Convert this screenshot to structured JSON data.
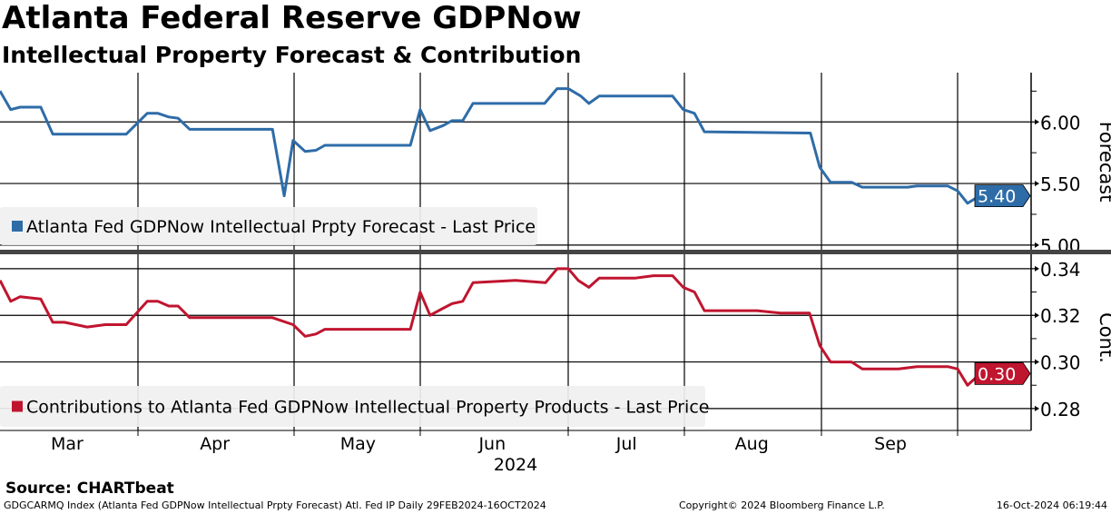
{
  "title": "Atlanta Federal Reserve GDPNow",
  "subtitle": "Intellectual Property Forecast & Contribution",
  "source": "Source: CHARTbeat",
  "footer": {
    "left": "GDGCARMQ Index (Atlanta Fed GDPNow Intellectual Prpty Forecast) Atl. Fed IP  Daily 29FEB2024-16OCT2024",
    "center": "Copyright© 2024 Bloomberg Finance L.P.",
    "right": "16-Oct-2024 06:19:44"
  },
  "chart_data": {
    "type": "line",
    "x_unit": "days since 29-Feb-2024",
    "x_ticks": [
      {
        "label": "Mar",
        "day": 15
      },
      {
        "label": "Apr",
        "day": 48
      },
      {
        "label": "May",
        "day": 80
      },
      {
        "label": "Jun",
        "day": 110
      },
      {
        "label": "Jul",
        "day": 140
      },
      {
        "label": "Aug",
        "day": 168
      },
      {
        "label": "Sep",
        "day": 199
      }
    ],
    "year_label": "2024",
    "panels": [
      {
        "axis_label": "Forecast",
        "ylim": [
          4.955,
          6.4
        ],
        "ticks": [
          "5.00",
          "5.50",
          "6.00"
        ],
        "tick_values": [
          5.0,
          5.5,
          6.0
        ],
        "series": {
          "name": "Atlanta Fed GDPNow Intellectual Prpty Forecast - Last Price",
          "color": "#2e6ca8",
          "last_label": "5.40",
          "points": [
            [
              0,
              6.25
            ],
            [
              2.4,
              6.1
            ],
            [
              4.5,
              6.12
            ],
            [
              9.1,
              6.12
            ],
            [
              11.8,
              5.9
            ],
            [
              28.2,
              5.9
            ],
            [
              32.9,
              6.07
            ],
            [
              35.3,
              6.07
            ],
            [
              37.7,
              6.04
            ],
            [
              39.8,
              6.03
            ],
            [
              42.4,
              5.94
            ],
            [
              60.9,
              5.94
            ],
            [
              63.5,
              5.4
            ],
            [
              65.5,
              5.85
            ],
            [
              68.2,
              5.76
            ],
            [
              70.6,
              5.77
            ],
            [
              72.6,
              5.81
            ],
            [
              91.7,
              5.81
            ],
            [
              93.9,
              6.1
            ],
            [
              96.1,
              5.93
            ],
            [
              99,
              5.97
            ],
            [
              101,
              6.01
            ],
            [
              103.4,
              6.01
            ],
            [
              105.7,
              6.15
            ],
            [
              121.7,
              6.15
            ],
            [
              124.5,
              6.27
            ],
            [
              127,
              6.27
            ],
            [
              129.8,
              6.21
            ],
            [
              131.6,
              6.15
            ],
            [
              133.9,
              6.21
            ],
            [
              150.3,
              6.21
            ],
            [
              152.7,
              6.1
            ],
            [
              155.2,
              6.07
            ],
            [
              157.4,
              5.92
            ],
            [
              181.1,
              5.91
            ],
            [
              183.2,
              5.63
            ],
            [
              185.6,
              5.51
            ],
            [
              190.3,
              5.51
            ],
            [
              192.7,
              5.47
            ],
            [
              202.8,
              5.47
            ],
            [
              204.9,
              5.48
            ],
            [
              211.8,
              5.48
            ],
            [
              214,
              5.44
            ],
            [
              216.2,
              5.34
            ],
            [
              218.5,
              5.39
            ],
            [
              220.7,
              5.4
            ],
            [
              225.6,
              5.4
            ]
          ]
        }
      },
      {
        "axis_label": "Cont.",
        "ylim": [
          0.2706,
          0.3462
        ],
        "ticks": [
          "0.28",
          "0.30",
          "0.32",
          "0.34"
        ],
        "tick_values": [
          0.28,
          0.3,
          0.32,
          0.34
        ],
        "series": {
          "name": "Contributions to Atlanta Fed GDPNow Intellectual Property Products - Last Price",
          "color": "#c0152f",
          "last_label": "0.30",
          "points": [
            [
              0,
              0.335
            ],
            [
              2.4,
              0.326
            ],
            [
              4.5,
              0.328
            ],
            [
              9.1,
              0.327
            ],
            [
              11.8,
              0.317
            ],
            [
              14.4,
              0.317
            ],
            [
              19.5,
              0.315
            ],
            [
              23.5,
              0.316
            ],
            [
              28.2,
              0.316
            ],
            [
              32.9,
              0.326
            ],
            [
              35.3,
              0.326
            ],
            [
              37.7,
              0.324
            ],
            [
              39.8,
              0.324
            ],
            [
              42.4,
              0.319
            ],
            [
              48.7,
              0.319
            ],
            [
              52.7,
              0.319
            ],
            [
              60.9,
              0.319
            ],
            [
              65.5,
              0.316
            ],
            [
              68.2,
              0.311
            ],
            [
              70.6,
              0.312
            ],
            [
              72.6,
              0.314
            ],
            [
              81.1,
              0.314
            ],
            [
              91.7,
              0.314
            ],
            [
              93.9,
              0.33
            ],
            [
              96.1,
              0.32
            ],
            [
              99,
              0.323
            ],
            [
              101,
              0.325
            ],
            [
              103.4,
              0.326
            ],
            [
              105.7,
              0.334
            ],
            [
              115.2,
              0.335
            ],
            [
              121.9,
              0.334
            ],
            [
              124.5,
              0.34
            ],
            [
              127,
              0.34
            ],
            [
              129.2,
              0.335
            ],
            [
              131.6,
              0.332
            ],
            [
              133.9,
              0.336
            ],
            [
              142,
              0.336
            ],
            [
              146,
              0.337
            ],
            [
              150.3,
              0.337
            ],
            [
              152.7,
              0.332
            ],
            [
              155.2,
              0.33
            ],
            [
              157.4,
              0.322
            ],
            [
              169.2,
              0.322
            ],
            [
              174.4,
              0.321
            ],
            [
              180.9,
              0.321
            ],
            [
              183.2,
              0.307
            ],
            [
              185.6,
              0.3
            ],
            [
              190.3,
              0.3
            ],
            [
              192.7,
              0.297
            ],
            [
              200.8,
              0.297
            ],
            [
              204.9,
              0.298
            ],
            [
              211.8,
              0.298
            ],
            [
              214,
              0.297
            ],
            [
              216.2,
              0.29
            ],
            [
              218.5,
              0.294
            ],
            [
              220.7,
              0.295
            ],
            [
              225.6,
              0.295
            ]
          ]
        }
      }
    ]
  }
}
